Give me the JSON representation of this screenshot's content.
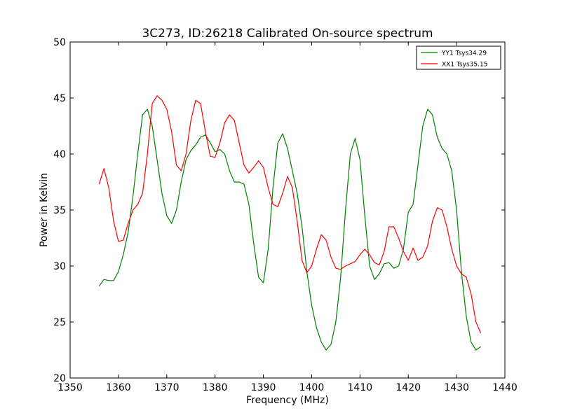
{
  "chart_data": {
    "type": "line",
    "title": "3C273, ID:26218 Calibrated On-source spectrum",
    "xlabel": "Frequency (MHz)",
    "ylabel": "Power in Kelvin",
    "xlim": [
      1350,
      1440
    ],
    "ylim": [
      20,
      50
    ],
    "xticks": [
      1350,
      1360,
      1370,
      1380,
      1390,
      1400,
      1410,
      1420,
      1430,
      1440
    ],
    "yticks": [
      20,
      25,
      30,
      35,
      40,
      45,
      50
    ],
    "grid": false,
    "legend_position": "top-right",
    "series": [
      {
        "name": "YY1 Tsys34.29",
        "color": "#008000",
        "x": [
          1356,
          1357,
          1358,
          1359,
          1360,
          1361,
          1362,
          1363,
          1364,
          1365,
          1366,
          1367,
          1368,
          1369,
          1370,
          1371,
          1372,
          1373,
          1374,
          1375,
          1376,
          1377,
          1378,
          1379,
          1380,
          1381,
          1382,
          1383,
          1384,
          1385,
          1386,
          1387,
          1388,
          1389,
          1390,
          1391,
          1392,
          1393,
          1394,
          1395,
          1396,
          1397,
          1398,
          1399,
          1400,
          1401,
          1402,
          1403,
          1404,
          1405,
          1406,
          1407,
          1408,
          1409,
          1410,
          1411,
          1412,
          1413,
          1414,
          1415,
          1416,
          1417,
          1418,
          1419,
          1420,
          1421,
          1422,
          1423,
          1424,
          1425,
          1426,
          1427,
          1428,
          1429,
          1430,
          1431,
          1432,
          1433,
          1434,
          1435
        ],
        "values": [
          28.2,
          28.8,
          28.7,
          28.7,
          29.5,
          31.0,
          33.0,
          36.2,
          40.0,
          43.5,
          44.0,
          42.5,
          39.5,
          36.5,
          34.5,
          33.8,
          35.0,
          37.5,
          39.5,
          40.3,
          40.8,
          41.5,
          41.7,
          41.0,
          40.2,
          40.4,
          40.0,
          38.5,
          37.5,
          37.5,
          37.3,
          35.5,
          32.0,
          29.0,
          28.5,
          31.5,
          37.0,
          41.0,
          41.8,
          40.5,
          38.5,
          36.5,
          33.5,
          29.5,
          26.5,
          24.5,
          23.2,
          22.5,
          23.0,
          25.0,
          29.0,
          35.0,
          40.0,
          41.4,
          39.5,
          34.5,
          30.0,
          28.8,
          29.3,
          30.2,
          30.3,
          29.8,
          30.0,
          31.5,
          34.8,
          35.5,
          39.0,
          42.5,
          44.0,
          43.5,
          41.5,
          40.5,
          40.0,
          38.5,
          35.0,
          29.5,
          25.5,
          23.2,
          22.5,
          22.8
        ]
      },
      {
        "name": "XX1 Tsys35.15",
        "color": "#ff0000",
        "x": [
          1356,
          1357,
          1358,
          1359,
          1360,
          1361,
          1362,
          1363,
          1364,
          1365,
          1366,
          1367,
          1368,
          1369,
          1370,
          1371,
          1372,
          1373,
          1374,
          1375,
          1376,
          1377,
          1378,
          1379,
          1380,
          1381,
          1382,
          1383,
          1384,
          1385,
          1386,
          1387,
          1388,
          1389,
          1390,
          1391,
          1392,
          1393,
          1394,
          1395,
          1396,
          1397,
          1398,
          1399,
          1400,
          1401,
          1402,
          1403,
          1404,
          1405,
          1406,
          1407,
          1408,
          1409,
          1410,
          1411,
          1412,
          1413,
          1414,
          1415,
          1416,
          1417,
          1418,
          1419,
          1420,
          1421,
          1422,
          1423,
          1424,
          1425,
          1426,
          1427,
          1428,
          1429,
          1430,
          1431,
          1432,
          1433,
          1434,
          1435
        ],
        "values": [
          37.3,
          38.7,
          37.0,
          34.0,
          32.2,
          32.3,
          33.8,
          35.0,
          35.5,
          36.5,
          40.0,
          44.5,
          45.2,
          44.8,
          44.0,
          42.0,
          39.0,
          38.5,
          40.0,
          43.0,
          44.8,
          44.5,
          42.0,
          39.8,
          39.7,
          41.0,
          42.8,
          43.5,
          43.0,
          41.0,
          39.0,
          38.3,
          38.8,
          39.4,
          38.8,
          37.0,
          35.5,
          35.3,
          36.5,
          38.0,
          37.0,
          34.0,
          30.5,
          29.4,
          30.0,
          31.5,
          32.8,
          32.3,
          30.8,
          29.8,
          29.7,
          30.0,
          30.2,
          30.4,
          31.0,
          31.5,
          31.0,
          30.3,
          30.1,
          31.3,
          33.5,
          33.5,
          32.5,
          31.3,
          30.5,
          31.6,
          30.5,
          30.8,
          31.8,
          34.0,
          35.2,
          35.0,
          33.5,
          31.5,
          30.0,
          29.3,
          29.0,
          27.5,
          25.0,
          24.0
        ]
      }
    ]
  }
}
